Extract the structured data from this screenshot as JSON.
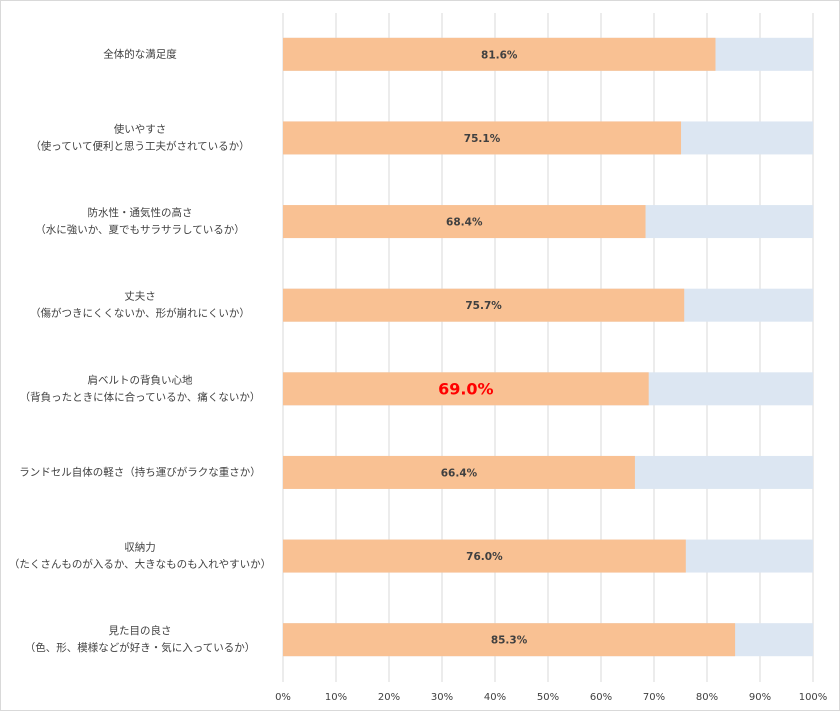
{
  "chart_data": {
    "type": "bar",
    "orientation": "horizontal",
    "categories": [
      [
        "全体的な満足度"
      ],
      [
        "使いやすさ",
        "（使っていて便利と思う工夫がされているか）"
      ],
      [
        "防水性・通気性の高さ",
        "（水に強いか、夏でもサラサラしているか）"
      ],
      [
        "丈夫さ",
        "（傷がつきにくくないか、形が崩れにくいか）"
      ],
      [
        "肩ベルトの背負い心地",
        "（背負ったときに体に合っているか、痛くないか）"
      ],
      [
        "ランドセル自体の軽さ（持ち運びがラクな重さか）"
      ],
      [
        "収納力",
        "（たくさんものが入るか、大きなものも入れやすいか）"
      ],
      [
        "見た目の良さ",
        "（色、形、模様などが好き・気に入っているか）"
      ]
    ],
    "values": [
      81.6,
      75.1,
      68.4,
      75.7,
      69.0,
      66.4,
      76.0,
      85.3
    ],
    "value_labels": [
      "81.6%",
      "75.1%",
      "68.4%",
      "75.7%",
      "69.0%",
      "66.4%",
      "76.0%",
      "85.3%"
    ],
    "color": "#f9c193",
    "background_color": "#dce6f2",
    "highlight": 4,
    "highlight_color": "#ff0000",
    "xlim": [
      0,
      100
    ],
    "xticks": [
      {
        "value": 0,
        "label": "0%"
      },
      {
        "value": 10,
        "label": "10%"
      },
      {
        "value": 20,
        "label": "20%"
      },
      {
        "value": 30,
        "label": "30%"
      },
      {
        "value": 40,
        "label": "40%"
      },
      {
        "value": 50,
        "label": "50%"
      },
      {
        "value": 60,
        "label": "60%"
      },
      {
        "value": 70,
        "label": "70%"
      },
      {
        "value": 80,
        "label": "80%"
      },
      {
        "value": 90,
        "label": "90%"
      },
      {
        "value": 100,
        "label": "100%"
      }
    ],
    "grid": true
  }
}
